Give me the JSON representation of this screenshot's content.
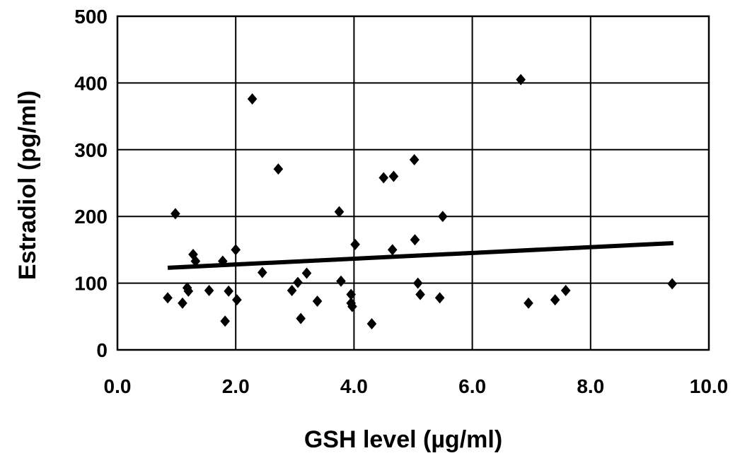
{
  "chart_data": {
    "type": "scatter",
    "title": "",
    "xlabel": "GSH level (µg/ml)",
    "ylabel": "Estradiol (pg/ml)",
    "xlim": [
      0,
      10
    ],
    "ylim": [
      0,
      500
    ],
    "x_ticks": [
      "0.0",
      "2.0",
      "4.0",
      "6.0",
      "8.0",
      "10.0"
    ],
    "y_ticks": [
      "0",
      "100",
      "200",
      "300",
      "400",
      "500"
    ],
    "grid": true,
    "series": [
      {
        "marker": "diamond",
        "color": "#000000",
        "points": [
          [
            0.85,
            78
          ],
          [
            0.98,
            204
          ],
          [
            1.1,
            70
          ],
          [
            1.18,
            93
          ],
          [
            1.2,
            88
          ],
          [
            1.28,
            143
          ],
          [
            1.32,
            133
          ],
          [
            1.55,
            89
          ],
          [
            1.78,
            133
          ],
          [
            1.82,
            43
          ],
          [
            1.88,
            88
          ],
          [
            2.0,
            150
          ],
          [
            2.02,
            75
          ],
          [
            2.28,
            376
          ],
          [
            2.45,
            116
          ],
          [
            2.72,
            271
          ],
          [
            2.95,
            89
          ],
          [
            3.05,
            101
          ],
          [
            3.1,
            47
          ],
          [
            3.2,
            115
          ],
          [
            3.38,
            73
          ],
          [
            3.75,
            207
          ],
          [
            3.78,
            103
          ],
          [
            3.95,
            83
          ],
          [
            3.95,
            70
          ],
          [
            3.97,
            65
          ],
          [
            4.02,
            158
          ],
          [
            4.3,
            39
          ],
          [
            4.5,
            258
          ],
          [
            4.65,
            150
          ],
          [
            4.67,
            260
          ],
          [
            5.02,
            285
          ],
          [
            5.03,
            165
          ],
          [
            5.08,
            100
          ],
          [
            5.12,
            83
          ],
          [
            5.45,
            78
          ],
          [
            5.5,
            200
          ],
          [
            6.82,
            405
          ],
          [
            6.95,
            70
          ],
          [
            7.4,
            75
          ],
          [
            7.58,
            89
          ],
          [
            9.38,
            99
          ]
        ]
      }
    ],
    "trendline": {
      "x": [
        0.85,
        9.4
      ],
      "y": [
        123,
        160
      ]
    }
  }
}
